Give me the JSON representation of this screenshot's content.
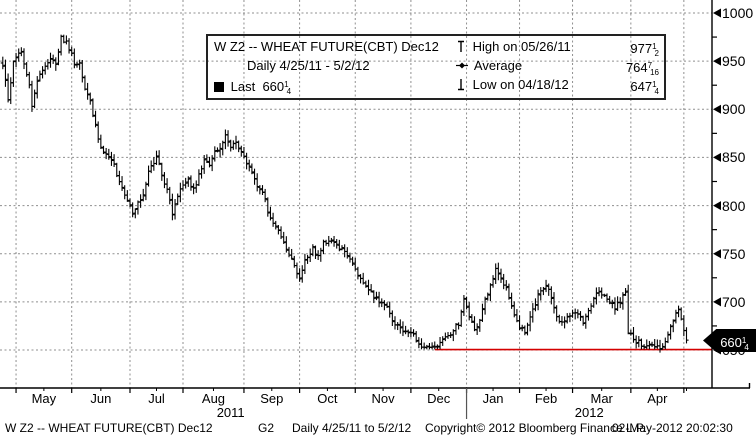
{
  "legend": {
    "title": "W Z2 -- WHEAT FUTURE(CBT) Dec12",
    "period": "Daily 4/25/11 - 5/2/12",
    "last_label": "Last",
    "last": {
      "int": "660",
      "num": "1",
      "den": "4"
    },
    "high_label": "High on 05/26/11",
    "high": {
      "int": "977",
      "num": "1",
      "den": "2"
    },
    "avg_label": "Average",
    "avg": {
      "int": "764",
      "num": "7",
      "den": "16"
    },
    "low_label": "Low on 04/18/12",
    "low": {
      "int": "647",
      "num": "1",
      "den": "4"
    }
  },
  "footer": {
    "security": "W Z2 -- WHEAT FUTURE(CBT) Dec12",
    "page": "G2",
    "range": "Daily  4/25/11 to 5/2/12",
    "copyright": "Copyright© 2012 Bloomberg Finance L.P.",
    "timestamp": "02-May-2012 20:02:30"
  },
  "chart_data": {
    "type": "ohlc_bar",
    "title": "W Z2 -- WHEAT FUTURE(CBT) Dec12",
    "subtitle": "Daily 4/25/11 - 5/2/12",
    "ylim": [
      620,
      1010
    ],
    "y_ticks": [
      1000,
      950,
      900,
      850,
      800,
      750,
      700,
      650
    ],
    "y_minor_step": 25,
    "grid": true,
    "x_months": [
      "May",
      "Jun",
      "Jul",
      "Aug",
      "Sep",
      "Oct",
      "Nov",
      "Dec",
      "Jan",
      "Feb",
      "Mar",
      "Apr"
    ],
    "x_years": [
      "2011",
      "2012"
    ],
    "pre_month_days": 5,
    "month_trading_days": [
      21,
      22,
      20,
      23,
      21,
      21,
      21,
      21,
      20,
      20,
      22,
      20,
      2
    ],
    "key_points": {
      "high": {
        "date": "05/26/11",
        "value": 977.5
      },
      "average": {
        "value": 764.4375
      },
      "low": {
        "date": "04/18/12",
        "value": 647.25
      },
      "last": {
        "date": "05/02/12",
        "value": 660.25
      }
    },
    "support_line": {
      "price": 650.5,
      "start_day": 163,
      "color": "#d40000"
    },
    "close_anchors": [
      [
        0,
        945
      ],
      [
        2,
        912
      ],
      [
        4,
        950
      ],
      [
        7,
        960
      ],
      [
        10,
        925
      ],
      [
        11,
        903
      ],
      [
        13,
        930
      ],
      [
        16,
        946
      ],
      [
        18,
        952
      ],
      [
        20,
        948
      ],
      [
        22,
        974
      ],
      [
        24,
        968
      ],
      [
        25,
        960
      ],
      [
        27,
        950
      ],
      [
        29,
        945
      ],
      [
        31,
        920
      ],
      [
        33,
        908
      ],
      [
        35,
        882
      ],
      [
        37,
        862
      ],
      [
        40,
        850
      ],
      [
        42,
        845
      ],
      [
        44,
        822
      ],
      [
        47,
        806
      ],
      [
        49,
        790
      ],
      [
        51,
        800
      ],
      [
        53,
        812
      ],
      [
        55,
        835
      ],
      [
        57,
        845
      ],
      [
        58,
        852
      ],
      [
        60,
        832
      ],
      [
        62,
        815
      ],
      [
        64,
        793
      ],
      [
        66,
        812
      ],
      [
        68,
        820
      ],
      [
        70,
        824
      ],
      [
        72,
        816
      ],
      [
        74,
        832
      ],
      [
        76,
        848
      ],
      [
        78,
        842
      ],
      [
        80,
        856
      ],
      [
        82,
        862
      ],
      [
        84,
        873
      ],
      [
        86,
        860
      ],
      [
        88,
        866
      ],
      [
        90,
        856
      ],
      [
        93,
        840
      ],
      [
        96,
        822
      ],
      [
        99,
        806
      ],
      [
        101,
        786
      ],
      [
        103,
        778
      ],
      [
        106,
        763
      ],
      [
        109,
        745
      ],
      [
        111,
        731
      ],
      [
        112,
        725
      ],
      [
        114,
        742
      ],
      [
        117,
        755
      ],
      [
        119,
        748
      ],
      [
        121,
        762
      ],
      [
        123,
        766
      ],
      [
        126,
        760
      ],
      [
        129,
        752
      ],
      [
        132,
        742
      ],
      [
        134,
        728
      ],
      [
        137,
        716
      ],
      [
        139,
        710
      ],
      [
        142,
        698
      ],
      [
        145,
        696
      ],
      [
        147,
        681
      ],
      [
        150,
        672
      ],
      [
        153,
        670
      ],
      [
        155,
        666
      ],
      [
        157,
        654
      ],
      [
        159,
        651
      ],
      [
        161,
        654
      ],
      [
        163,
        650
      ],
      [
        166,
        661
      ],
      [
        169,
        668
      ],
      [
        172,
        676
      ],
      [
        174,
        700
      ],
      [
        176,
        686
      ],
      [
        178,
        669
      ],
      [
        180,
        681
      ],
      [
        182,
        700
      ],
      [
        184,
        718
      ],
      [
        186,
        734
      ],
      [
        188,
        728
      ],
      [
        190,
        712
      ],
      [
        193,
        684
      ],
      [
        195,
        672
      ],
      [
        197,
        668
      ],
      [
        199,
        684
      ],
      [
        201,
        700
      ],
      [
        203,
        714
      ],
      [
        205,
        717
      ],
      [
        207,
        702
      ],
      [
        209,
        684
      ],
      [
        211,
        677
      ],
      [
        213,
        684
      ],
      [
        215,
        690
      ],
      [
        217,
        687
      ],
      [
        219,
        679
      ],
      [
        221,
        690
      ],
      [
        223,
        702
      ],
      [
        225,
        712
      ],
      [
        227,
        709
      ],
      [
        229,
        699
      ],
      [
        231,
        694
      ],
      [
        233,
        700
      ],
      [
        235,
        709
      ],
      [
        236,
        668
      ],
      [
        238,
        660
      ],
      [
        240,
        656
      ],
      [
        242,
        652
      ],
      [
        244,
        654
      ],
      [
        246,
        655
      ],
      [
        248,
        650
      ],
      [
        250,
        660
      ],
      [
        251,
        666
      ],
      [
        252,
        672
      ],
      [
        253,
        680
      ],
      [
        254,
        687
      ],
      [
        255,
        690
      ],
      [
        256,
        682
      ],
      [
        257,
        668
      ],
      [
        258,
        660.25
      ]
    ],
    "n_days": 259,
    "forced": {
      "high_day": 22,
      "high_value": 977.5,
      "low_day": 248,
      "low_value": 647.25
    }
  }
}
